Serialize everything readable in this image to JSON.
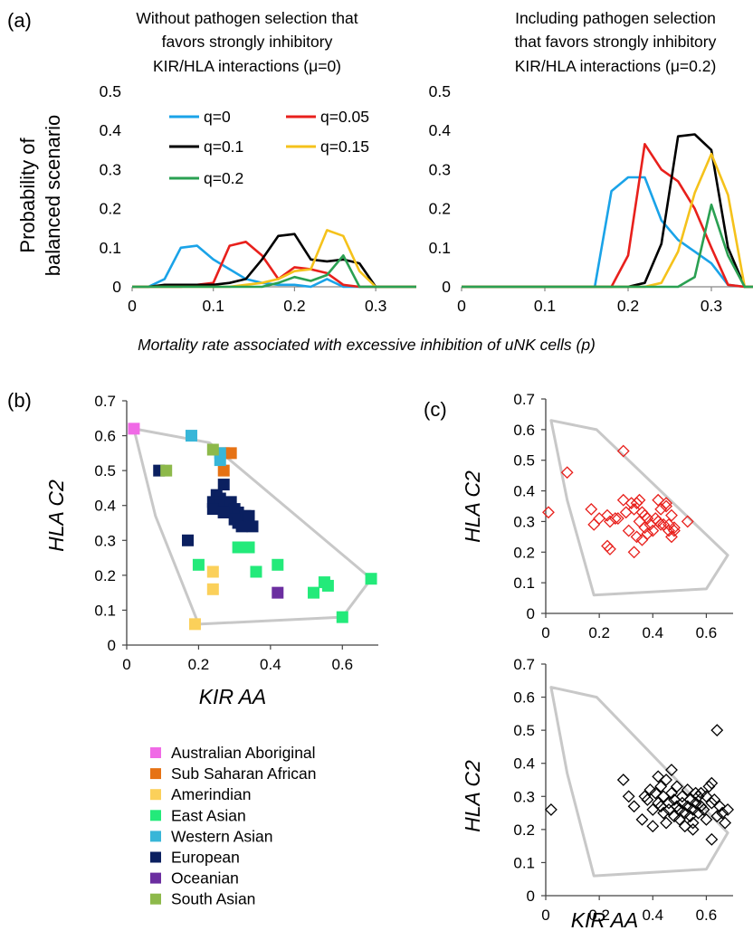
{
  "panels": {
    "a": {
      "label": "(a)",
      "left_title": [
        "Without pathogen selection that",
        "favors strongly inhibitory",
        "KIR/HLA interactions (μ=0)"
      ],
      "right_title": [
        "Including pathogen selection",
        "that favors strongly inhibitory",
        "KIR/HLA interactions  (μ=0.2)"
      ],
      "ylabel": [
        "Probability of",
        "balanced scenario"
      ],
      "xlabel": "Mortality rate associated with excessive inhibition of uNK cells (p)"
    },
    "b": {
      "label": "(b)",
      "xlabel": "KIR  AA",
      "ylabel": "HLA C2"
    },
    "c": {
      "label": "(c)",
      "xlabel": "KIR  AA",
      "ylabel": "HLA C2"
    }
  },
  "chart_data": [
    {
      "id": "a-left",
      "type": "line",
      "xlim": [
        0,
        0.35
      ],
      "ylim": [
        0,
        0.5
      ],
      "xticks": [
        "0",
        "0.1",
        "0.2",
        "0.3"
      ],
      "yticks": [
        "0",
        "0.1",
        "0.2",
        "0.3",
        "0.4",
        "0.5"
      ],
      "x": [
        0,
        0.02,
        0.04,
        0.06,
        0.08,
        0.1,
        0.12,
        0.14,
        0.16,
        0.18,
        0.2,
        0.22,
        0.24,
        0.26,
        0.28,
        0.3,
        0.32,
        0.35
      ],
      "series": [
        {
          "name": "q=0",
          "color": "#1aa3e8",
          "values": [
            0,
            0,
            0.02,
            0.1,
            0.105,
            0.07,
            0.045,
            0.02,
            0.01,
            0.005,
            0.005,
            0,
            0.02,
            0,
            0,
            0,
            0,
            0
          ]
        },
        {
          "name": "q=0.05",
          "color": "#e8201c",
          "values": [
            0,
            0,
            0,
            0,
            0.005,
            0.01,
            0.105,
            0.115,
            0.08,
            0.02,
            0.05,
            0.045,
            0.035,
            0.005,
            0,
            0,
            0,
            0
          ]
        },
        {
          "name": "q=0.1",
          "color": "#000000",
          "values": [
            0,
            0,
            0.005,
            0.005,
            0.005,
            0.005,
            0.01,
            0.02,
            0.07,
            0.13,
            0.135,
            0.07,
            0.065,
            0.07,
            0.06,
            0,
            0,
            0
          ]
        },
        {
          "name": "q=0.15",
          "color": "#f5c21b",
          "values": [
            0,
            0,
            0,
            0,
            0,
            0,
            0,
            0.005,
            0.01,
            0.02,
            0.04,
            0.045,
            0.145,
            0.13,
            0.04,
            0,
            0,
            0
          ]
        },
        {
          "name": "q=0.2",
          "color": "#2aa052",
          "values": [
            0,
            0,
            0,
            0,
            0,
            0,
            0,
            0,
            0,
            0.01,
            0.025,
            0.015,
            0.03,
            0.08,
            0,
            0,
            0,
            0
          ]
        }
      ]
    },
    {
      "id": "a-right",
      "type": "line",
      "xlim": [
        0,
        0.35
      ],
      "ylim": [
        0,
        0.5
      ],
      "xticks": [
        "0",
        "0.1",
        "0.2",
        "0.3"
      ],
      "yticks": [
        "0",
        "0.1",
        "0.2",
        "0.3",
        "0.4",
        "0.5"
      ],
      "x": [
        0,
        0.02,
        0.04,
        0.06,
        0.08,
        0.1,
        0.12,
        0.14,
        0.16,
        0.18,
        0.2,
        0.22,
        0.24,
        0.26,
        0.28,
        0.3,
        0.32,
        0.34,
        0.35
      ],
      "series": [
        {
          "name": "q=0",
          "color": "#1aa3e8",
          "values": [
            0,
            0,
            0,
            0,
            0,
            0,
            0,
            0,
            0,
            0.245,
            0.28,
            0.28,
            0.17,
            0.12,
            0.09,
            0.06,
            0.005,
            0,
            0
          ]
        },
        {
          "name": "q=0.05",
          "color": "#e8201c",
          "values": [
            0,
            0,
            0,
            0,
            0,
            0,
            0,
            0,
            0,
            0,
            0.08,
            0.365,
            0.3,
            0.27,
            0.2,
            0.1,
            0.005,
            0,
            0
          ]
        },
        {
          "name": "q=0.1",
          "color": "#000000",
          "values": [
            0,
            0,
            0,
            0,
            0,
            0,
            0,
            0,
            0,
            0,
            0,
            0.01,
            0.11,
            0.385,
            0.39,
            0.35,
            0.1,
            0,
            0
          ]
        },
        {
          "name": "q=0.15",
          "color": "#f5c21b",
          "values": [
            0,
            0,
            0,
            0,
            0,
            0,
            0,
            0,
            0,
            0,
            0,
            0,
            0.01,
            0.09,
            0.24,
            0.34,
            0.235,
            0,
            0
          ]
        },
        {
          "name": "q=0.2",
          "color": "#2aa052",
          "values": [
            0,
            0,
            0,
            0,
            0,
            0,
            0,
            0,
            0,
            0,
            0,
            0,
            0,
            0,
            0.025,
            0.21,
            0.08,
            0,
            0
          ]
        }
      ]
    },
    {
      "id": "b",
      "type": "scatter",
      "xlim": [
        0,
        0.7
      ],
      "ylim": [
        0,
        0.7
      ],
      "xticks": [
        "0",
        "0.2",
        "0.4",
        "0.6"
      ],
      "yticks": [
        "0",
        "0.1",
        "0.2",
        "0.3",
        "0.4",
        "0.5",
        "0.6",
        "0.7"
      ],
      "hull": [
        [
          0.02,
          0.62
        ],
        [
          0.23,
          0.58
        ],
        [
          0.68,
          0.19
        ],
        [
          0.6,
          0.08
        ],
        [
          0.2,
          0.06
        ],
        [
          0.08,
          0.37
        ]
      ],
      "series": [
        {
          "name": "Australian Aboriginal",
          "color": "#f06ae6",
          "points": [
            [
              0.02,
              0.62
            ]
          ]
        },
        {
          "name": "Sub Saharan African",
          "color": "#e67214",
          "points": [
            [
              0.27,
              0.55
            ],
            [
              0.29,
              0.55
            ],
            [
              0.27,
              0.5
            ]
          ]
        },
        {
          "name": "Amerindian",
          "color": "#fbd05a",
          "points": [
            [
              0.24,
              0.21
            ],
            [
              0.24,
              0.16
            ],
            [
              0.19,
              0.06
            ]
          ]
        },
        {
          "name": "East Asian",
          "color": "#23ea7a",
          "points": [
            [
              0.2,
              0.23
            ],
            [
              0.31,
              0.28
            ],
            [
              0.34,
              0.28
            ],
            [
              0.36,
              0.21
            ],
            [
              0.42,
              0.23
            ],
            [
              0.55,
              0.18
            ],
            [
              0.56,
              0.17
            ],
            [
              0.52,
              0.15
            ],
            [
              0.68,
              0.19
            ],
            [
              0.6,
              0.08
            ]
          ]
        },
        {
          "name": "Western Asian",
          "color": "#38b6d8",
          "points": [
            [
              0.18,
              0.6
            ],
            [
              0.26,
              0.55
            ],
            [
              0.26,
              0.53
            ]
          ]
        },
        {
          "name": "European",
          "color": "#0b2060",
          "points": [
            [
              0.09,
              0.5
            ],
            [
              0.27,
              0.46
            ],
            [
              0.25,
              0.43
            ],
            [
              0.26,
              0.42
            ],
            [
              0.24,
              0.41
            ],
            [
              0.26,
              0.4
            ],
            [
              0.29,
              0.41
            ],
            [
              0.24,
              0.39
            ],
            [
              0.27,
              0.38
            ],
            [
              0.3,
              0.39
            ],
            [
              0.31,
              0.38
            ],
            [
              0.33,
              0.37
            ],
            [
              0.3,
              0.36
            ],
            [
              0.31,
              0.35
            ],
            [
              0.32,
              0.34
            ],
            [
              0.34,
              0.37
            ],
            [
              0.35,
              0.34
            ],
            [
              0.27,
              0.38
            ],
            [
              0.17,
              0.3
            ]
          ]
        },
        {
          "name": "Oceanian",
          "color": "#6b2ea0",
          "points": [
            [
              0.42,
              0.15
            ]
          ]
        },
        {
          "name": "South Asian",
          "color": "#8db94a",
          "points": [
            [
              0.11,
              0.5
            ],
            [
              0.24,
              0.56
            ]
          ]
        }
      ]
    },
    {
      "id": "c-top",
      "type": "scatter",
      "xlim": [
        0,
        0.7
      ],
      "ylim": [
        0,
        0.7
      ],
      "xticks": [
        "0",
        "0.2",
        "0.4",
        "0.6"
      ],
      "yticks": [
        "0",
        "0.1",
        "0.2",
        "0.3",
        "0.4",
        "0.5",
        "0.6",
        "0.7"
      ],
      "hull": [
        [
          0.02,
          0.63
        ],
        [
          0.19,
          0.6
        ],
        [
          0.68,
          0.19
        ],
        [
          0.6,
          0.08
        ],
        [
          0.18,
          0.06
        ],
        [
          0.08,
          0.37
        ]
      ],
      "series": [
        {
          "name": "",
          "color": "#e8201c",
          "points": [
            [
              0.01,
              0.33
            ],
            [
              0.08,
              0.46
            ],
            [
              0.17,
              0.34
            ],
            [
              0.18,
              0.29
            ],
            [
              0.2,
              0.31
            ],
            [
              0.23,
              0.32
            ],
            [
              0.24,
              0.3
            ],
            [
              0.23,
              0.22
            ],
            [
              0.24,
              0.21
            ],
            [
              0.26,
              0.31
            ],
            [
              0.27,
              0.31
            ],
            [
              0.29,
              0.37
            ],
            [
              0.29,
              0.53
            ],
            [
              0.3,
              0.33
            ],
            [
              0.31,
              0.27
            ],
            [
              0.32,
              0.36
            ],
            [
              0.33,
              0.2
            ],
            [
              0.33,
              0.34
            ],
            [
              0.34,
              0.25
            ],
            [
              0.34,
              0.36
            ],
            [
              0.35,
              0.37
            ],
            [
              0.35,
              0.3
            ],
            [
              0.36,
              0.24
            ],
            [
              0.36,
              0.33
            ],
            [
              0.37,
              0.28
            ],
            [
              0.37,
              0.32
            ],
            [
              0.38,
              0.26
            ],
            [
              0.38,
              0.31
            ],
            [
              0.39,
              0.29
            ],
            [
              0.4,
              0.27
            ],
            [
              0.41,
              0.31
            ],
            [
              0.42,
              0.3
            ],
            [
              0.42,
              0.37
            ],
            [
              0.43,
              0.29
            ],
            [
              0.43,
              0.34
            ],
            [
              0.44,
              0.29
            ],
            [
              0.45,
              0.35
            ],
            [
              0.45,
              0.36
            ],
            [
              0.46,
              0.27
            ],
            [
              0.46,
              0.29
            ],
            [
              0.47,
              0.25
            ],
            [
              0.48,
              0.28
            ],
            [
              0.48,
              0.27
            ],
            [
              0.47,
              0.32
            ],
            [
              0.53,
              0.3
            ]
          ]
        }
      ]
    },
    {
      "id": "c-bottom",
      "type": "scatter",
      "xlim": [
        0,
        0.7
      ],
      "ylim": [
        0,
        0.7
      ],
      "xticks": [
        "0",
        "0.2",
        "0.4",
        "0.6"
      ],
      "yticks": [
        "0",
        "0.1",
        "0.2",
        "0.3",
        "0.4",
        "0.5",
        "0.6",
        "0.7"
      ],
      "hull": [
        [
          0.02,
          0.63
        ],
        [
          0.19,
          0.6
        ],
        [
          0.68,
          0.19
        ],
        [
          0.6,
          0.08
        ],
        [
          0.18,
          0.06
        ],
        [
          0.08,
          0.37
        ]
      ],
      "series": [
        {
          "name": "",
          "color": "#000000",
          "points": [
            [
              0.02,
              0.26
            ],
            [
              0.29,
              0.35
            ],
            [
              0.31,
              0.3
            ],
            [
              0.33,
              0.27
            ],
            [
              0.36,
              0.23
            ],
            [
              0.37,
              0.3
            ],
            [
              0.38,
              0.29
            ],
            [
              0.39,
              0.32
            ],
            [
              0.4,
              0.26
            ],
            [
              0.4,
              0.21
            ],
            [
              0.41,
              0.31
            ],
            [
              0.42,
              0.36
            ],
            [
              0.42,
              0.28
            ],
            [
              0.43,
              0.27
            ],
            [
              0.43,
              0.33
            ],
            [
              0.44,
              0.25
            ],
            [
              0.44,
              0.3
            ],
            [
              0.45,
              0.35
            ],
            [
              0.45,
              0.22
            ],
            [
              0.46,
              0.28
            ],
            [
              0.46,
              0.26
            ],
            [
              0.47,
              0.31
            ],
            [
              0.47,
              0.38
            ],
            [
              0.48,
              0.24
            ],
            [
              0.48,
              0.29
            ],
            [
              0.49,
              0.27
            ],
            [
              0.49,
              0.33
            ],
            [
              0.5,
              0.23
            ],
            [
              0.5,
              0.26
            ],
            [
              0.51,
              0.3
            ],
            [
              0.51,
              0.28
            ],
            [
              0.52,
              0.25
            ],
            [
              0.52,
              0.21
            ],
            [
              0.53,
              0.27
            ],
            [
              0.53,
              0.32
            ],
            [
              0.54,
              0.24
            ],
            [
              0.54,
              0.29
            ],
            [
              0.55,
              0.26
            ],
            [
              0.55,
              0.22
            ],
            [
              0.56,
              0.28
            ],
            [
              0.56,
              0.31
            ],
            [
              0.57,
              0.25
            ],
            [
              0.57,
              0.3
            ],
            [
              0.58,
              0.27
            ],
            [
              0.59,
              0.26
            ],
            [
              0.6,
              0.23
            ],
            [
              0.61,
              0.33
            ],
            [
              0.62,
              0.28
            ],
            [
              0.62,
              0.17
            ],
            [
              0.63,
              0.29
            ],
            [
              0.64,
              0.24
            ],
            [
              0.64,
              0.5
            ],
            [
              0.65,
              0.27
            ],
            [
              0.66,
              0.25
            ],
            [
              0.67,
              0.22
            ],
            [
              0.68,
              0.26
            ],
            [
              0.6,
              0.3
            ],
            [
              0.62,
              0.34
            ],
            [
              0.58,
              0.31
            ],
            [
              0.55,
              0.2
            ]
          ]
        }
      ]
    }
  ]
}
